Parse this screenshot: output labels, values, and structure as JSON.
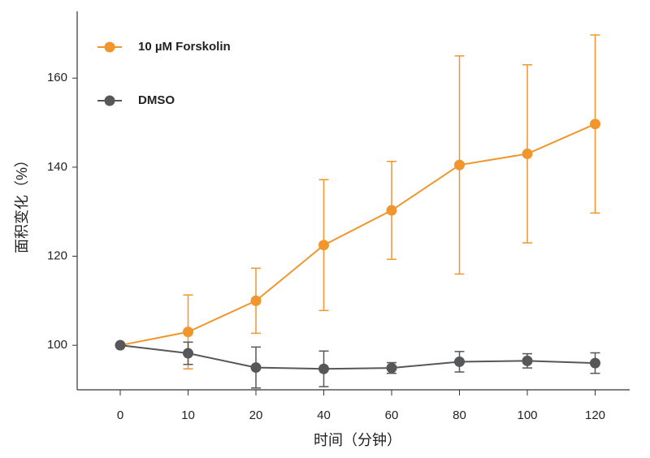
{
  "chart_data": {
    "type": "line",
    "x_label": "时间（分钟）",
    "y_label": "面积变化（%）",
    "categories": [
      "0",
      "10",
      "20",
      "40",
      "60",
      "80",
      "100",
      "120"
    ],
    "ylim": [
      90,
      175
    ],
    "yticks": [
      100,
      120,
      140,
      160
    ],
    "series": [
      {
        "name": "10 µM Forskolin",
        "color": "#f0962d",
        "values": [
          100,
          103,
          110,
          122.5,
          130.3,
          140.5,
          143,
          149.7
        ],
        "errors": [
          null,
          8.3,
          7.3,
          14.7,
          11,
          24.5,
          20,
          20
        ]
      },
      {
        "name": "DMSO",
        "color": "#555759",
        "values": [
          100,
          98.2,
          95,
          94.7,
          94.9,
          96.3,
          96.5,
          96
        ],
        "errors": [
          null,
          2.5,
          4.6,
          4,
          1.2,
          2.3,
          1.6,
          2.3
        ]
      }
    ]
  }
}
